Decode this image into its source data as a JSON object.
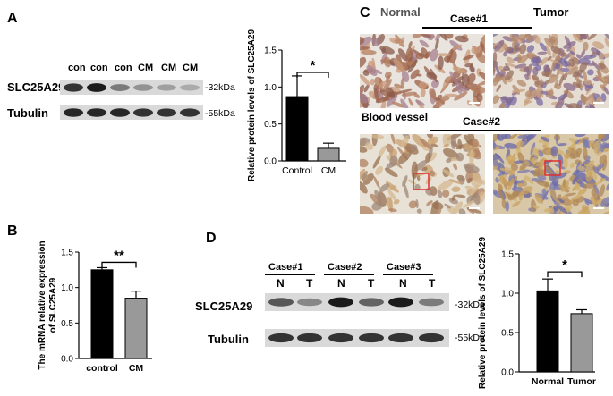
{
  "panel_a": {
    "letter": "A",
    "lanes": [
      "con",
      "con",
      "con",
      "CM",
      "CM",
      "CM"
    ],
    "rows": [
      {
        "label": "SLC25A29",
        "kda": "-32kDa",
        "intensities": [
          0.85,
          0.95,
          0.55,
          0.45,
          0.4,
          0.35
        ]
      },
      {
        "label": "Tubulin",
        "kda": "-55kDa",
        "intensities": [
          0.9,
          0.9,
          0.9,
          0.85,
          0.85,
          0.85
        ]
      }
    ]
  },
  "panel_b": {
    "letter": "B"
  },
  "panel_c": {
    "letter": "C",
    "normal": "Normal",
    "tumor": "Tumor",
    "case1": "Case#1",
    "case2": "Case#2",
    "blood_vessel": "Blood vessel"
  },
  "panel_d": {
    "letter": "D",
    "cases": [
      "Case#1",
      "Case#2",
      "Case#3"
    ],
    "lanes": [
      "N",
      "T",
      "N",
      "T",
      "N",
      "T"
    ],
    "rows": [
      {
        "label": "SLC25A29",
        "kda": "-32kDa",
        "intensities": [
          0.7,
          0.5,
          0.95,
          0.65,
          0.95,
          0.55
        ]
      },
      {
        "label": "Tubulin",
        "kda": "-55kDa",
        "intensities": [
          0.85,
          0.85,
          0.85,
          0.85,
          0.85,
          0.85
        ]
      }
    ]
  },
  "colors": {
    "black_bar": "#000000",
    "gray_bar": "#999999",
    "highlight_box": "#e03030",
    "blood_vessel_text": "#d03030"
  },
  "chart_data": [
    {
      "id": "panel-a-bar",
      "type": "bar",
      "categories": [
        "Control",
        "CM"
      ],
      "values": [
        0.87,
        0.17
      ],
      "errors": [
        0.28,
        0.07
      ],
      "ylabel": "Relative protein levels of SLC25A29",
      "ylim": [
        0,
        1.5
      ],
      "yticks": [
        "0.0",
        "0.5",
        "1.0",
        "1.5"
      ],
      "significance": "*",
      "bar_colors": [
        "#000000",
        "#999999"
      ]
    },
    {
      "id": "panel-b-bar",
      "type": "bar",
      "categories": [
        "control",
        "CM"
      ],
      "values": [
        1.25,
        0.85
      ],
      "errors": [
        0.03,
        0.1
      ],
      "ylabel": "The mRNA relative expression of SLC25A29",
      "ylim": [
        0,
        1.5
      ],
      "yticks": [
        "0.0",
        "0.5",
        "1.0",
        "1.5"
      ],
      "significance": "**",
      "bar_colors": [
        "#000000",
        "#999999"
      ]
    },
    {
      "id": "panel-d-bar",
      "type": "bar",
      "categories": [
        "Normal",
        "Tumor"
      ],
      "values": [
        1.03,
        0.74
      ],
      "errors": [
        0.15,
        0.05
      ],
      "ylabel": "Relative protein levels of SLC25A29",
      "ylim": [
        0,
        1.5
      ],
      "yticks": [
        "0.0",
        "0.5",
        "1.0",
        "1.5"
      ],
      "significance": "*",
      "bar_colors": [
        "#000000",
        "#999999"
      ]
    }
  ]
}
